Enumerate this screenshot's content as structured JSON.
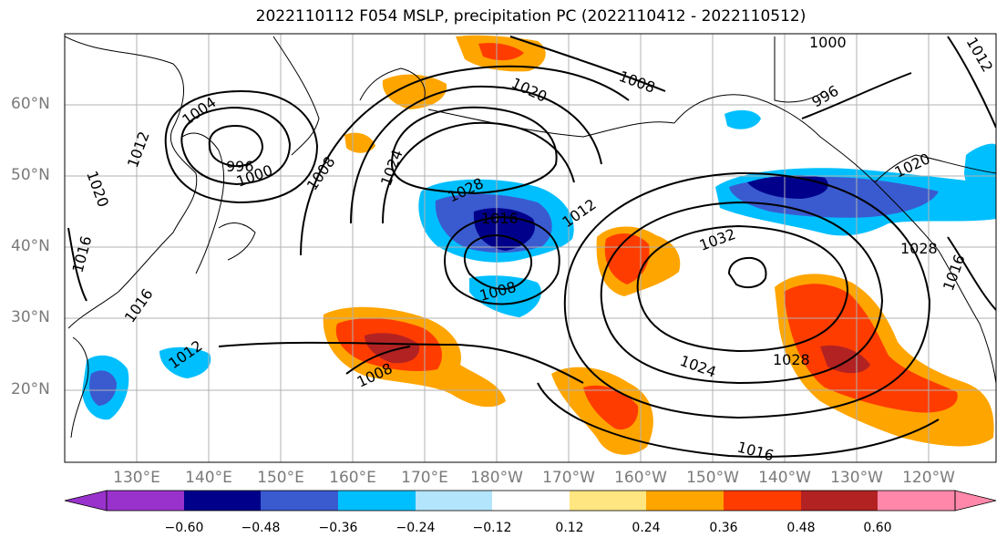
{
  "title": "2022110112 F054 MSLP, precipitation PC (2022110412 - 2022110512)",
  "lat_labels": [
    "60°N",
    "50°N",
    "40°N",
    "30°N",
    "20°N"
  ],
  "lon_labels": [
    "130°E",
    "140°E",
    "150°E",
    "160°E",
    "170°E",
    "180°W",
    "170°W",
    "160°W",
    "150°W",
    "140°W",
    "130°W",
    "120°W"
  ],
  "colorbar": {
    "ticks": [
      "−0.60",
      "−0.48",
      "−0.36",
      "−0.24",
      "−0.12",
      "0.12",
      "0.24",
      "0.36",
      "0.48",
      "0.60"
    ],
    "colors": [
      "#9932cc",
      "#00008b",
      "#3a5bd0",
      "#00bfff",
      "#b3e5fc",
      "#ffffff",
      "#ffe680",
      "#ffa500",
      "#ff3c00",
      "#b22222",
      "#ff88aa"
    ]
  },
  "isobar_labels": [
    "1004",
    "1012",
    "996",
    "1000",
    "1020",
    "1008",
    "1024",
    "1028",
    "1016",
    "1008",
    "1012",
    "1020",
    "1008",
    "996",
    "1000",
    "1032",
    "1028",
    "1028",
    "1024",
    "1016",
    "1012",
    "1008",
    "1020",
    "1016",
    "1016",
    "1012",
    "1016"
  ],
  "legend_colors": {
    "isobar": "#000000",
    "grid": "#b0b0b0",
    "coast": "#000000"
  }
}
